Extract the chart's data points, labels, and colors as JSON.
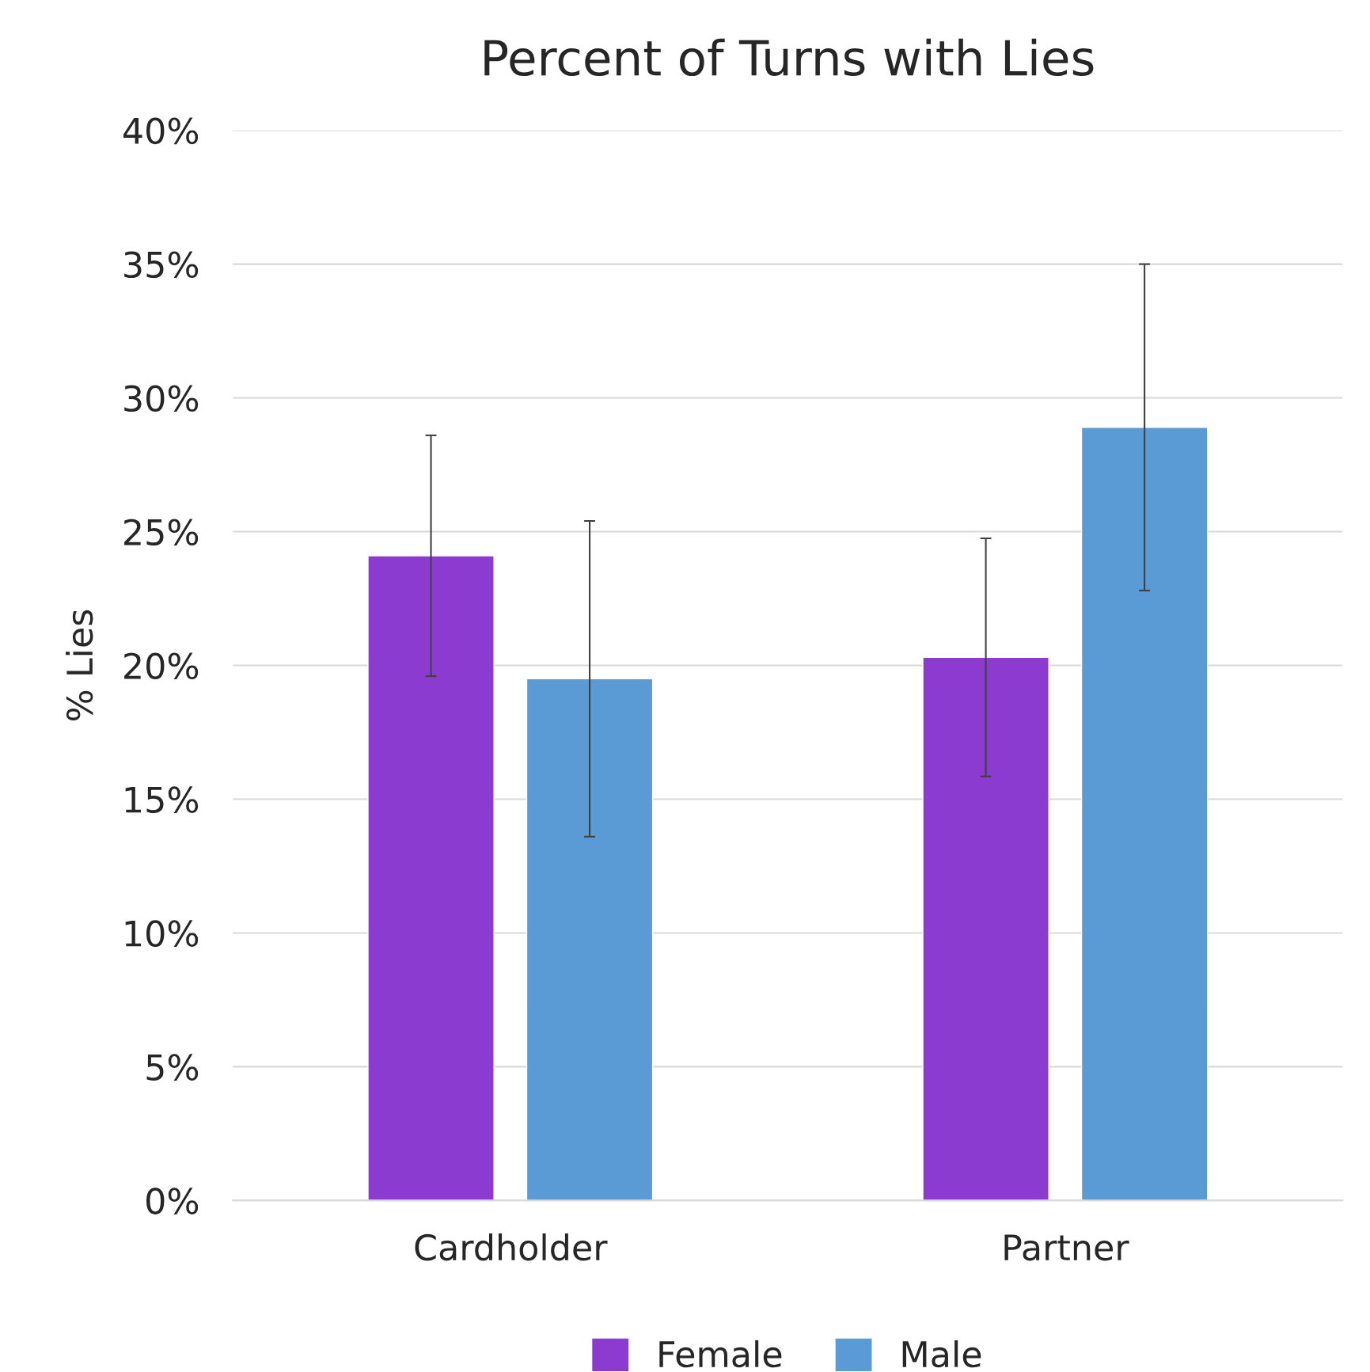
{
  "chart_data": {
    "type": "bar",
    "title": "Percent of Turns with Lies",
    "ylabel": "% Lies",
    "categories": [
      "Cardholder",
      "Partner"
    ],
    "series": [
      {
        "name": "Female",
        "color": "#8b3bcf",
        "values": [
          24.1,
          20.3
        ],
        "errors": [
          4.5,
          4.45
        ]
      },
      {
        "name": "Male",
        "color": "#5b9bd5",
        "values": [
          19.5,
          28.9
        ],
        "errors": [
          5.9,
          6.1
        ]
      }
    ],
    "ylim": [
      0,
      40
    ],
    "yticks": [
      {
        "value": 0,
        "label": "0%"
      },
      {
        "value": 5,
        "label": "5%"
      },
      {
        "value": 10,
        "label": "10%"
      },
      {
        "value": 15,
        "label": "15%"
      },
      {
        "value": 20,
        "label": "20%"
      },
      {
        "value": 25,
        "label": "25%"
      },
      {
        "value": 30,
        "label": "30%"
      },
      {
        "value": 35,
        "label": "35%"
      },
      {
        "value": 40,
        "label": "40%"
      }
    ],
    "grid": "y",
    "legend": "bottom"
  }
}
